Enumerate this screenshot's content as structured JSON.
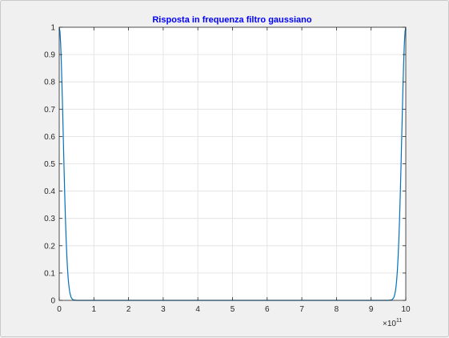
{
  "chart_data": {
    "type": "line",
    "title": "Risposta in frequenza filtro gaussiano",
    "xlabel": "",
    "ylabel": "",
    "x_exponent_label": "×10",
    "x_exponent_power": "11",
    "xlim": [
      0,
      10
    ],
    "ylim": [
      0,
      1
    ],
    "x_ticks": [
      "0",
      "1",
      "2",
      "3",
      "4",
      "5",
      "6",
      "7",
      "8",
      "9",
      "10"
    ],
    "y_ticks": [
      "0",
      "0.1",
      "0.2",
      "0.3",
      "0.4",
      "0.5",
      "0.6",
      "0.7",
      "0.8",
      "0.9",
      "1"
    ],
    "grid": true,
    "legend": false,
    "series": [
      {
        "x": [
          0,
          0.02,
          0.04,
          0.06,
          0.08,
          0.1,
          0.12,
          0.14,
          0.16,
          0.18,
          0.2,
          0.22,
          0.24,
          0.26,
          0.28,
          0.3,
          0.32,
          0.34,
          0.36,
          0.4,
          0.5,
          1,
          2,
          3,
          4,
          5,
          6,
          7,
          8,
          9,
          9.5,
          9.6,
          9.64,
          9.66,
          9.68,
          9.7,
          9.72,
          9.74,
          9.76,
          9.78,
          9.8,
          9.82,
          9.84,
          9.86,
          9.88,
          9.9,
          9.92,
          9.94,
          9.96,
          9.98,
          10
        ],
        "y": [
          1,
          0.985,
          0.942,
          0.874,
          0.786,
          0.687,
          0.582,
          0.479,
          0.382,
          0.296,
          0.222,
          0.162,
          0.114,
          0.078,
          0.052,
          0.033,
          0.021,
          0.012,
          0.007,
          0.002,
          0,
          0,
          0,
          0,
          0,
          0,
          0,
          0,
          0,
          0,
          0,
          0.002,
          0.007,
          0.012,
          0.021,
          0.033,
          0.052,
          0.078,
          0.114,
          0.162,
          0.222,
          0.296,
          0.382,
          0.479,
          0.582,
          0.687,
          0.786,
          0.874,
          0.942,
          0.985,
          1
        ]
      }
    ],
    "colors": {
      "line": "#0072bd",
      "title": "#0000ff",
      "grid": "#dfdfdf",
      "axes": "#262626"
    }
  }
}
